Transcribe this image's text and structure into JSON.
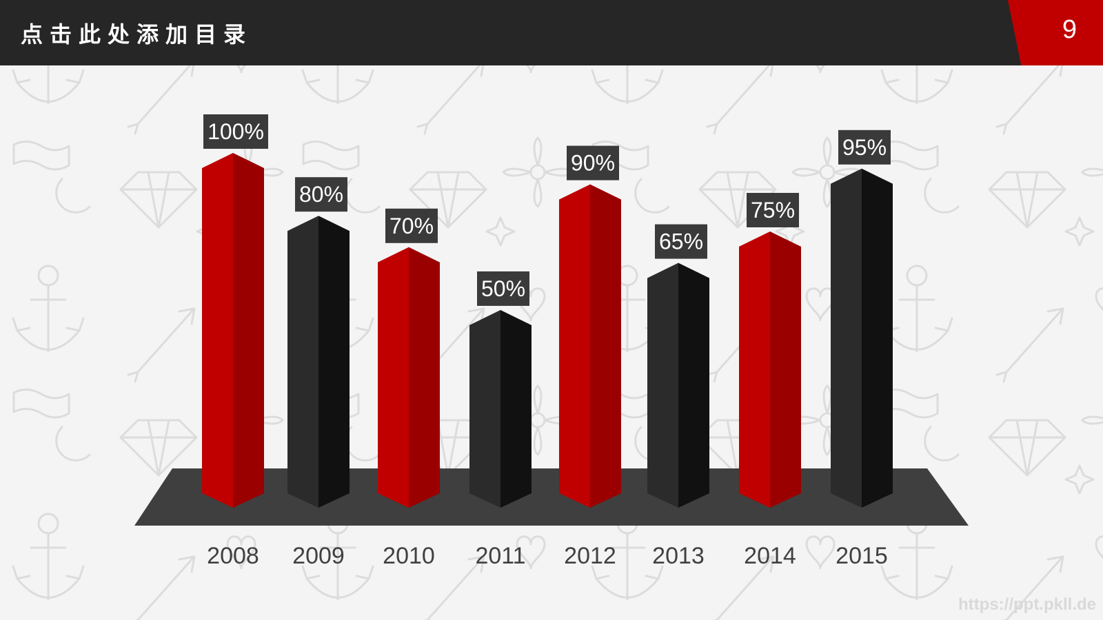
{
  "header": {
    "title": "点击此处添加目录",
    "page_number": "9"
  },
  "watermark": "https://ppt.pkll.de",
  "colors": {
    "header_bg": "#262626",
    "accent_red": "#c00000",
    "bar_red_front": "#c00000",
    "bar_red_side": "#9a0000",
    "bar_black_front": "#2b2b2b",
    "bar_black_side": "#111111",
    "platform": "#3f3f3f",
    "label_bg": "#3a3a3a"
  },
  "chart_data": {
    "type": "bar",
    "categories": [
      "2008",
      "2009",
      "2010",
      "2011",
      "2012",
      "2013",
      "2014",
      "2015"
    ],
    "values": [
      100,
      80,
      70,
      50,
      90,
      65,
      75,
      95
    ],
    "data_labels": [
      "100%",
      "80%",
      "70%",
      "50%",
      "90%",
      "65%",
      "75%",
      "95%"
    ],
    "bar_colors": [
      "red",
      "black",
      "red",
      "black",
      "red",
      "black",
      "red",
      "black"
    ],
    "title": "",
    "xlabel": "",
    "ylabel": "",
    "ylim": [
      0,
      100
    ],
    "grid": false,
    "legend": "none",
    "style": "3d-prism"
  }
}
